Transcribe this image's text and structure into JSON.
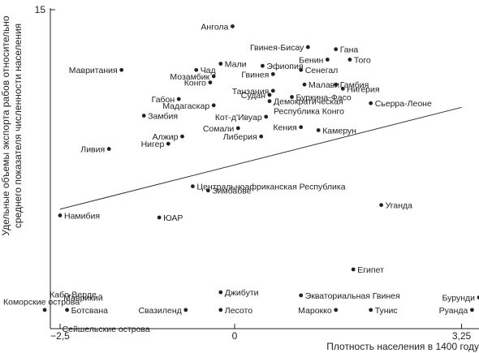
{
  "chart_data": {
    "type": "scatter",
    "xlabel": "Плотность населения в 1400 году",
    "ylabel_line1": "Удельные объемы экспорта рабов относительно",
    "ylabel_line2": "среднего показателя численности населения",
    "x_ticks": [
      {
        "value": -2.5,
        "label": "−2,5"
      },
      {
        "value": 0,
        "label": "0"
      },
      {
        "value": 3.25,
        "label": "3,25"
      }
    ],
    "y_ticks": [
      {
        "value": 15,
        "label": "15"
      }
    ],
    "xlim": [
      -2.7,
      3.4
    ],
    "ylim": [
      0,
      15.0
    ],
    "trend_line": {
      "x": [
        -2.5,
        3.25
      ],
      "y": [
        5.4,
        10.3
      ]
    },
    "points": [
      {
        "name": "Ангола",
        "x": -0.03,
        "y": 14.2,
        "label": "Ангола",
        "anchor": "end"
      },
      {
        "name": "Гвинея-Бисау",
        "x": 1.05,
        "y": 13.2,
        "label": "Гвинея-Бисау",
        "anchor": "end"
      },
      {
        "name": "Гана",
        "x": 1.45,
        "y": 13.1,
        "label": "Гана",
        "anchor": "start"
      },
      {
        "name": "Бенин",
        "x": 1.33,
        "y": 12.6,
        "label": "Бенин",
        "anchor": "end"
      },
      {
        "name": "Того",
        "x": 1.65,
        "y": 12.6,
        "label": "Того",
        "anchor": "start"
      },
      {
        "name": "Мали",
        "x": -0.2,
        "y": 12.4,
        "label": "Мали",
        "anchor": "start"
      },
      {
        "name": "Эфиопия",
        "x": 0.4,
        "y": 12.3,
        "label": "Эфиопия",
        "anchor": "start"
      },
      {
        "name": "Чад",
        "x": -0.55,
        "y": 12.1,
        "label": "Чад",
        "anchor": "start"
      },
      {
        "name": "Сенегал",
        "x": 0.95,
        "y": 12.1,
        "label": "Сенегал",
        "anchor": "start"
      },
      {
        "name": "Мавритания",
        "x": -1.62,
        "y": 12.1,
        "label": "Мавритания",
        "anchor": "end"
      },
      {
        "name": "Мозамбик",
        "x": -0.3,
        "y": 11.8,
        "label": "Мозамбик",
        "anchor": "end"
      },
      {
        "name": "Гвинея",
        "x": 0.55,
        "y": 11.9,
        "label": "Гвинея",
        "anchor": "end"
      },
      {
        "name": "Конго",
        "x": -0.35,
        "y": 11.5,
        "label": "Конго",
        "anchor": "end"
      },
      {
        "name": "Малави",
        "x": 1.0,
        "y": 11.4,
        "label": "Малави",
        "anchor": "start"
      },
      {
        "name": "Гамбия",
        "x": 1.45,
        "y": 11.4,
        "label": "Гамбия",
        "anchor": "start"
      },
      {
        "name": "Нигерия",
        "x": 1.55,
        "y": 11.2,
        "label": "Нигерия",
        "anchor": "start"
      },
      {
        "name": "Танзания",
        "x": 0.55,
        "y": 11.1,
        "label": "Танзания",
        "anchor": "end"
      },
      {
        "name": "Судан",
        "x": 0.5,
        "y": 10.9,
        "label": "Судан",
        "anchor": "end"
      },
      {
        "name": "Буркина-Фасо",
        "x": 0.82,
        "y": 10.8,
        "label": "Буркина-Фасо",
        "anchor": "start"
      },
      {
        "name": "Демократическая Республика Конго",
        "x": 0.5,
        "y": 10.6,
        "label": "Демократическая",
        "label2": "Республика Конго",
        "anchor": "start"
      },
      {
        "name": "Габон",
        "x": -0.8,
        "y": 10.7,
        "label": "Габон",
        "anchor": "end"
      },
      {
        "name": "Сьерра-Леоне",
        "x": 1.95,
        "y": 10.5,
        "label": "Сьерра-Леоне",
        "anchor": "start"
      },
      {
        "name": "Мадагаскар",
        "x": -0.3,
        "y": 10.4,
        "label": "Мадагаскар",
        "anchor": "end"
      },
      {
        "name": "Замбия",
        "x": -1.3,
        "y": 9.9,
        "label": "Замбия",
        "anchor": "start"
      },
      {
        "name": "Кот-д'Ивуар",
        "x": 0.45,
        "y": 9.85,
        "label": "Кот-д'Ивуар",
        "anchor": "end"
      },
      {
        "name": "Камерун",
        "x": 1.2,
        "y": 9.2,
        "label": "Камерун",
        "anchor": "start"
      },
      {
        "name": "Кения",
        "x": 0.95,
        "y": 9.35,
        "label": "Кения",
        "anchor": "end"
      },
      {
        "name": "Сомали",
        "x": 0.05,
        "y": 9.3,
        "label": "Сомали",
        "anchor": "end"
      },
      {
        "name": "Алжир",
        "x": -0.75,
        "y": 8.9,
        "label": "Алжир",
        "anchor": "end"
      },
      {
        "name": "Либерия",
        "x": 0.38,
        "y": 8.9,
        "label": "Либерия",
        "anchor": "end"
      },
      {
        "name": "Нигер",
        "x": -0.95,
        "y": 8.55,
        "label": "Нигер",
        "anchor": "end"
      },
      {
        "name": "Ливия",
        "x": -1.8,
        "y": 8.3,
        "label": "Ливия",
        "anchor": "end"
      },
      {
        "name": "Центральноафриканская Республика",
        "x": -0.6,
        "y": 6.5,
        "label": "Центральноафриканская Республика",
        "anchor": "start"
      },
      {
        "name": "Зимбабве",
        "x": -0.38,
        "y": 6.3,
        "label": "Зимбабве",
        "anchor": "start"
      },
      {
        "name": "Уганда",
        "x": 2.1,
        "y": 5.6,
        "label": "Уганда",
        "anchor": "start"
      },
      {
        "name": "Намибия",
        "x": -2.5,
        "y": 5.1,
        "label": "Намибия",
        "anchor": "start"
      },
      {
        "name": "ЮАР",
        "x": -1.08,
        "y": 5.0,
        "label": "ЮАР",
        "anchor": "start"
      },
      {
        "name": "Египет",
        "x": 1.7,
        "y": 2.5,
        "label": "Египет",
        "anchor": "start"
      },
      {
        "name": "Джибути",
        "x": -0.2,
        "y": 1.4,
        "label": "Джибути",
        "anchor": "start"
      },
      {
        "name": "Экваториальная Гвинея",
        "x": 0.95,
        "y": 1.25,
        "label": "Экваториальная Гвинея",
        "anchor": "start"
      },
      {
        "name": "Бурунди",
        "x": 3.5,
        "y": 1.15,
        "label": "Бурунди",
        "anchor": "end"
      },
      {
        "name": "Ботсвана",
        "x": -2.4,
        "y": 0.55,
        "label": "Ботсвана",
        "anchor": "start"
      },
      {
        "name": "Свазиленд",
        "x": -0.7,
        "y": 0.55,
        "label": "Свазиленд",
        "anchor": "end"
      },
      {
        "name": "Лесото",
        "x": -0.2,
        "y": 0.55,
        "label": "Лесото",
        "anchor": "start"
      },
      {
        "name": "Марокко",
        "x": 1.45,
        "y": 0.55,
        "label": "Марокко",
        "anchor": "end"
      },
      {
        "name": "Тунис",
        "x": 1.95,
        "y": 0.55,
        "label": "Тунис",
        "anchor": "start"
      },
      {
        "name": "Руанда",
        "x": 3.4,
        "y": 0.55,
        "label": "Руанда",
        "anchor": "end"
      },
      {
        "name": "Сейшельские острова",
        "x": -2.72,
        "y": 0.55,
        "label": "",
        "anchor": "start"
      }
    ],
    "free_labels": [
      {
        "text": "Кабо-Верде",
        "x": -2.65,
        "y": 1.3
      },
      {
        "text": "Коморские острова",
        "x": -3.55,
        "y": 0.95
      },
      {
        "text": "Маврикий",
        "x": -2.45,
        "y": 1.15
      },
      {
        "text": "Сейшельские острова",
        "x": -2.47,
        "y": -0.35
      }
    ]
  }
}
